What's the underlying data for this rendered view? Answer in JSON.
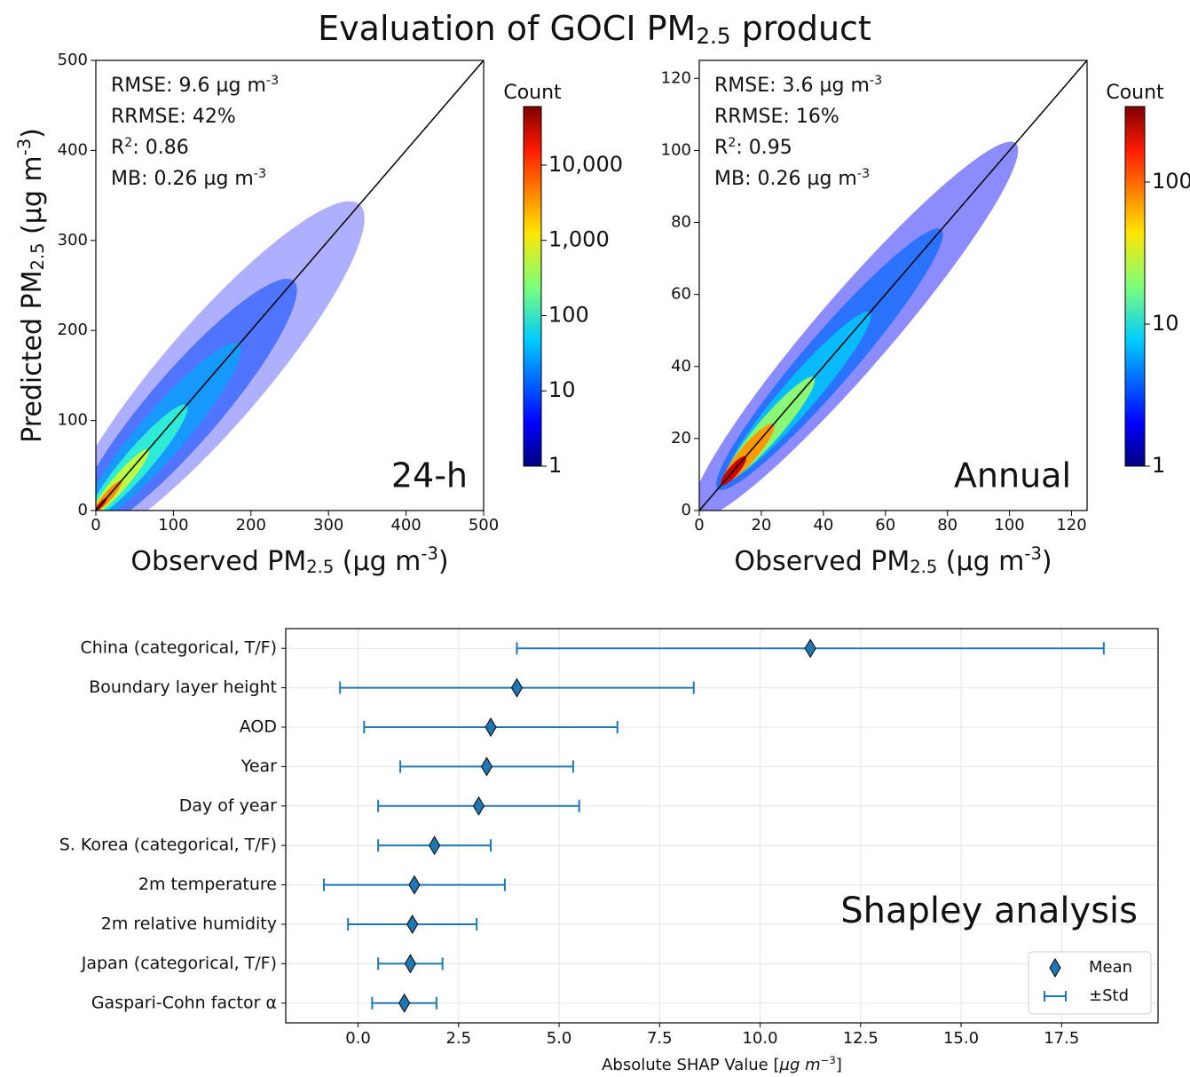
{
  "title": [
    {
      "text": "Evaluation of GOCI PM"
    },
    {
      "sub": "2.5"
    },
    {
      "text": " product"
    }
  ],
  "chart_data": [
    {
      "type": "density",
      "xlabel": [
        {
          "text": "Observed PM"
        },
        {
          "sub": "2.5"
        },
        {
          "text": " (µg m"
        },
        {
          "sup": "-3"
        },
        {
          "text": ")"
        }
      ],
      "ylabel": [
        {
          "text": "Predicted PM"
        },
        {
          "sub": "2.5"
        },
        {
          "text": " (µg m"
        },
        {
          "sup": "-3"
        },
        {
          "text": ")"
        }
      ],
      "xlim": [
        0,
        500
      ],
      "ylim": [
        0,
        500
      ],
      "xticks": [
        0,
        100,
        200,
        300,
        400,
        500
      ],
      "yticks": [
        0,
        100,
        200,
        300,
        400,
        500
      ],
      "annotations": [
        [
          {
            "text": "RMSE: 9.6 µg m"
          },
          {
            "sup": "-3"
          }
        ],
        [
          {
            "text": "RRMSE: 42%"
          }
        ],
        [
          {
            "text": "R"
          },
          {
            "sup": "2"
          },
          {
            "text": ": 0.86"
          }
        ],
        [
          {
            "text": "MB: 0.26 µg m"
          },
          {
            "sup": "-3"
          }
        ]
      ],
      "label": "24-h",
      "identity_line": true,
      "colorbar": {
        "label": "Count",
        "scale": "log",
        "clim": [
          1,
          60000
        ],
        "colormap": "jet",
        "ticks": [
          1,
          10,
          100,
          {
            "value": 1000,
            "label": "1,000"
          },
          {
            "value": 10000,
            "label": "10,000"
          }
        ]
      }
    },
    {
      "type": "density",
      "xlabel": [
        {
          "text": "Observed PM"
        },
        {
          "sub": "2.5"
        },
        {
          "text": " (µg m"
        },
        {
          "sup": "-3"
        },
        {
          "text": ")"
        }
      ],
      "xlim": [
        0,
        125
      ],
      "ylim": [
        0,
        125
      ],
      "xticks": [
        0,
        20,
        40,
        60,
        80,
        100,
        120
      ],
      "yticks": [
        0,
        20,
        40,
        60,
        80,
        100,
        120
      ],
      "annotations": [
        [
          {
            "text": "RMSE: 3.6 µg m"
          },
          {
            "sup": "-3"
          }
        ],
        [
          {
            "text": "RRMSE: 16%"
          }
        ],
        [
          {
            "text": "R"
          },
          {
            "sup": "2"
          },
          {
            "text": ": 0.95"
          }
        ],
        [
          {
            "text": "MB: 0.26 µg m"
          },
          {
            "sup": "-3"
          }
        ]
      ],
      "label": "Annual",
      "identity_line": true,
      "colorbar": {
        "label": "Count",
        "scale": "log",
        "clim": [
          1,
          340
        ],
        "colormap": "jet",
        "ticks": [
          1,
          10,
          100
        ]
      }
    },
    {
      "type": "errorbar",
      "categories": [
        "China (categorical, T/F)",
        "Boundary layer height",
        "AOD",
        "Year",
        "Day of year",
        "S. Korea (categorical, T/F)",
        "2m temperature",
        "2m relative humidity",
        "Japan (categorical, T/F)",
        "Gaspari-Cohn factor α"
      ],
      "series": [
        {
          "name": "Mean",
          "color": "#1f77b4",
          "marker": "diamond",
          "values": [
            11.25,
            3.95,
            3.3,
            3.2,
            3.0,
            1.9,
            1.4,
            1.35,
            1.3,
            1.15
          ]
        },
        {
          "name": "±Std",
          "color": "#1f77b4",
          "values": [
            7.3,
            4.4,
            3.15,
            2.15,
            2.5,
            1.4,
            2.25,
            1.6,
            0.8,
            0.8
          ]
        }
      ],
      "xlim": [
        -1.8,
        19.9
      ],
      "xticks": [
        {
          "value": 0,
          "label": "0.0"
        },
        {
          "value": 2.5,
          "label": "2.5"
        },
        {
          "value": 5,
          "label": "5.0"
        },
        {
          "value": 7.5,
          "label": "7.5"
        },
        {
          "value": 10,
          "label": "10.0"
        },
        {
          "value": 12.5,
          "label": "12.5"
        },
        {
          "value": 15,
          "label": "15.0"
        },
        {
          "value": 17.5,
          "label": "17.5"
        }
      ],
      "xlabel": [
        {
          "text": "Absolute SHAP Value ["
        },
        {
          "text": "µg m",
          "style": "italic"
        },
        {
          "sup": "−3"
        },
        {
          "text": "]"
        }
      ],
      "annotation": "Shapley analysis",
      "grid": true,
      "legend": "lower right"
    }
  ]
}
